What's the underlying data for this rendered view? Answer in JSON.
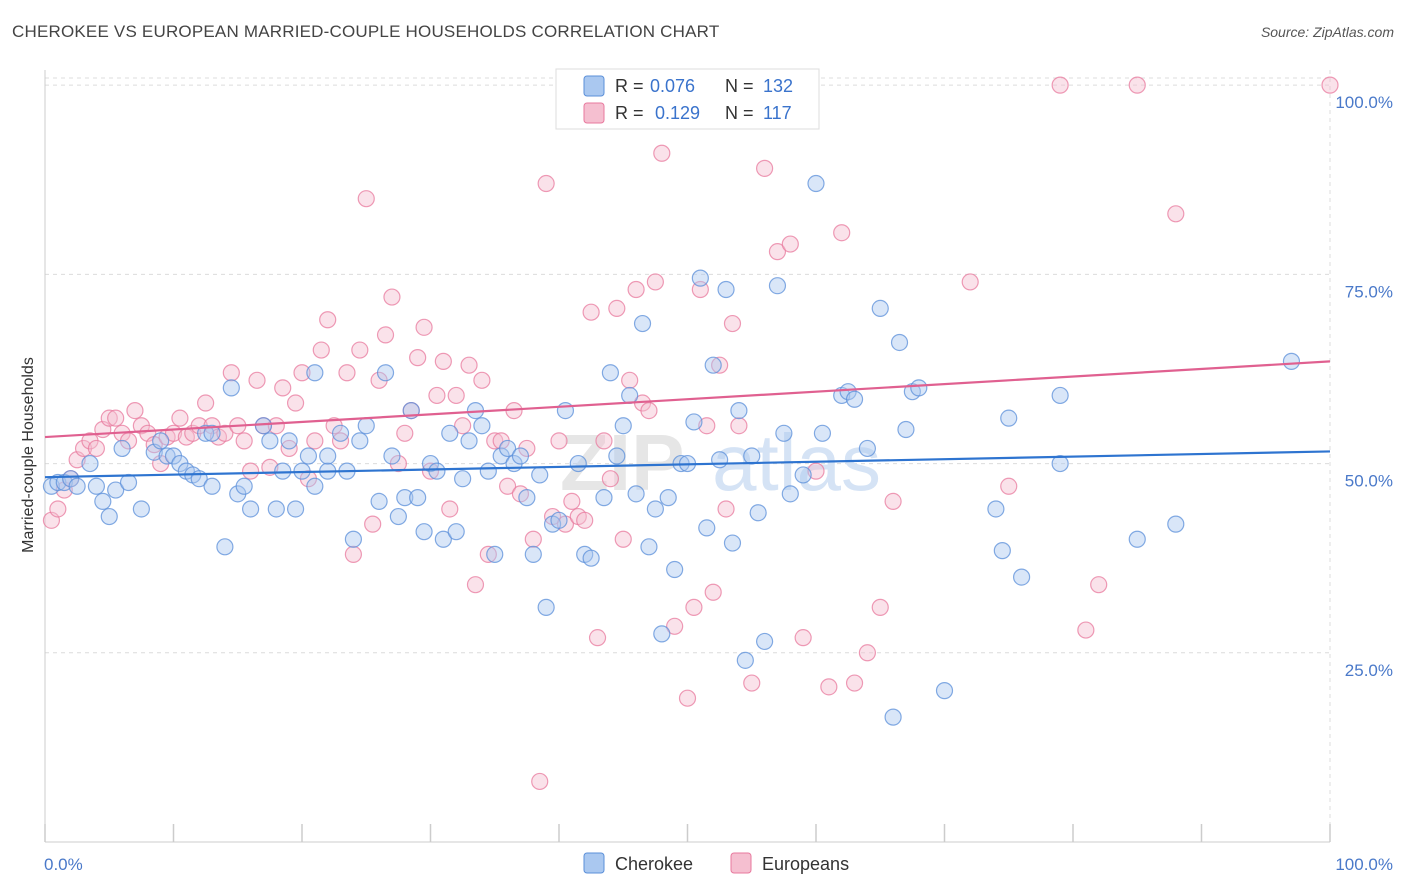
{
  "header": {
    "title": "CHEROKEE VS EUROPEAN MARRIED-COUPLE HOUSEHOLDS CORRELATION CHART",
    "source": "Source: ZipAtlas.com"
  },
  "watermark": "ZIPatlas",
  "colors": {
    "cherokee": "#5b8fd9",
    "cherokee_fill": "#aac8f0",
    "european": "#e8799e",
    "european_fill": "#f5bfd0",
    "cherokee_line": "#2e74d0",
    "european_line": "#e06090",
    "axis_text": "#4a79c9"
  },
  "legend_top": {
    "rows": [
      {
        "series": "Cherokee",
        "r_label": "R =",
        "r_value": "0.076",
        "n_label": "N =",
        "n_value": "132"
      },
      {
        "series": "Europeans",
        "r_label": "R =",
        "r_value": "0.129",
        "n_label": "N =",
        "n_value": "117"
      }
    ]
  },
  "chart_data": {
    "type": "scatter",
    "title": "CHEROKEE VS EUROPEAN MARRIED-COUPLE HOUSEHOLDS CORRELATION CHART",
    "xlabel": "",
    "ylabel": "Married-couple Households",
    "xlim": [
      0,
      100
    ],
    "ylim": [
      0,
      102
    ],
    "x_tick_labels": [
      "0.0%",
      "100.0%"
    ],
    "y_tick_labels": [
      "25.0%",
      "50.0%",
      "75.0%",
      "100.0%"
    ],
    "y_ticks": [
      25,
      50,
      75,
      100
    ],
    "grid": true,
    "legend_position": "bottom-center",
    "series": [
      {
        "name": "Cherokee",
        "R": 0.076,
        "N": 132,
        "trend": {
          "start": [
            0,
            48.2
          ],
          "end": [
            100,
            51.6
          ]
        },
        "points": [
          [
            0.5,
            47
          ],
          [
            1,
            47.5
          ],
          [
            1.5,
            47.5
          ],
          [
            2,
            48
          ],
          [
            2.5,
            47
          ],
          [
            3.5,
            50
          ],
          [
            4,
            47
          ],
          [
            4.5,
            45
          ],
          [
            5,
            43
          ],
          [
            5.5,
            46.5
          ],
          [
            6,
            52
          ],
          [
            6.5,
            47.5
          ],
          [
            7.5,
            44
          ],
          [
            8.5,
            51.5
          ],
          [
            9,
            53
          ],
          [
            9.5,
            51
          ],
          [
            10,
            51
          ],
          [
            10.5,
            50
          ],
          [
            11,
            49
          ],
          [
            11.5,
            48.5
          ],
          [
            12,
            48
          ],
          [
            12.5,
            54
          ],
          [
            13,
            54
          ],
          [
            13,
            47
          ],
          [
            14,
            39
          ],
          [
            14.5,
            60
          ],
          [
            15,
            46
          ],
          [
            15.5,
            47
          ],
          [
            16,
            44
          ],
          [
            17,
            55
          ],
          [
            17.5,
            53
          ],
          [
            18,
            44
          ],
          [
            18.5,
            49
          ],
          [
            19,
            53
          ],
          [
            19.5,
            44
          ],
          [
            20,
            49
          ],
          [
            20.5,
            51
          ],
          [
            21,
            62
          ],
          [
            21,
            47
          ],
          [
            22,
            49
          ],
          [
            22,
            51
          ],
          [
            23,
            54
          ],
          [
            23.5,
            49
          ],
          [
            24,
            40
          ],
          [
            24.5,
            53
          ],
          [
            25,
            55
          ],
          [
            26,
            45
          ],
          [
            26.5,
            62
          ],
          [
            27,
            51
          ],
          [
            27.5,
            43
          ],
          [
            28,
            45.5
          ],
          [
            28.5,
            57
          ],
          [
            29,
            45.5
          ],
          [
            29.5,
            41
          ],
          [
            30,
            50
          ],
          [
            30.5,
            49
          ],
          [
            31,
            40
          ],
          [
            31.5,
            54
          ],
          [
            32,
            41
          ],
          [
            32.5,
            48
          ],
          [
            33,
            53
          ],
          [
            33.5,
            57
          ],
          [
            34,
            55
          ],
          [
            34.5,
            49
          ],
          [
            35,
            38
          ],
          [
            35.5,
            51
          ],
          [
            36,
            52
          ],
          [
            36.5,
            50
          ],
          [
            37,
            51
          ],
          [
            37.5,
            45.5
          ],
          [
            38,
            38
          ],
          [
            38.5,
            48.5
          ],
          [
            39,
            31
          ],
          [
            39.5,
            42
          ],
          [
            40,
            42.5
          ],
          [
            40.5,
            57
          ],
          [
            41.5,
            50
          ],
          [
            42,
            38
          ],
          [
            42.5,
            37.5
          ],
          [
            43.5,
            45.5
          ],
          [
            44,
            62
          ],
          [
            44.5,
            51
          ],
          [
            45,
            55
          ],
          [
            45.5,
            59
          ],
          [
            46,
            46
          ],
          [
            46.5,
            68.5
          ],
          [
            47,
            39
          ],
          [
            47.5,
            44
          ],
          [
            48,
            27.5
          ],
          [
            48.5,
            45.5
          ],
          [
            49,
            36
          ],
          [
            49.5,
            50
          ],
          [
            50,
            50
          ],
          [
            50.5,
            55.5
          ],
          [
            51,
            74.5
          ],
          [
            51.5,
            41.5
          ],
          [
            52,
            63
          ],
          [
            52.5,
            50.5
          ],
          [
            53,
            73
          ],
          [
            53.5,
            39.5
          ],
          [
            54,
            57
          ],
          [
            54.5,
            24
          ],
          [
            55,
            51
          ],
          [
            55.5,
            43.5
          ],
          [
            56,
            26.5
          ],
          [
            57,
            73.5
          ],
          [
            57.5,
            54
          ],
          [
            58,
            46
          ],
          [
            59,
            48.5
          ],
          [
            60,
            87
          ],
          [
            60.5,
            54
          ],
          [
            62,
            59
          ],
          [
            62.5,
            59.5
          ],
          [
            63,
            58.5
          ],
          [
            64,
            52
          ],
          [
            65,
            70.5
          ],
          [
            66,
            16.5
          ],
          [
            66.5,
            66
          ],
          [
            67,
            54.5
          ],
          [
            67.5,
            59.5
          ],
          [
            68,
            60
          ],
          [
            70,
            20
          ],
          [
            74,
            44
          ],
          [
            74.5,
            38.5
          ],
          [
            75,
            56
          ],
          [
            76,
            35
          ],
          [
            79,
            59
          ],
          [
            79,
            50
          ],
          [
            85,
            40
          ],
          [
            88,
            42
          ],
          [
            97,
            63.5
          ]
        ]
      },
      {
        "name": "Europeans",
        "R": 0.129,
        "N": 117,
        "trend": {
          "start": [
            0,
            53.5
          ],
          "end": [
            100,
            63.5
          ]
        },
        "points": [
          [
            0.5,
            42.5
          ],
          [
            1,
            44
          ],
          [
            1.5,
            46.5
          ],
          [
            2,
            48
          ],
          [
            2.5,
            50.5
          ],
          [
            3,
            52
          ],
          [
            3.5,
            53
          ],
          [
            4,
            52
          ],
          [
            4.5,
            54.5
          ],
          [
            5,
            56
          ],
          [
            5.5,
            56
          ],
          [
            6,
            54
          ],
          [
            6.5,
            53
          ],
          [
            7,
            57
          ],
          [
            7.5,
            55
          ],
          [
            8,
            54
          ],
          [
            8.5,
            52.5
          ],
          [
            9,
            50
          ],
          [
            9.5,
            53.5
          ],
          [
            10,
            54
          ],
          [
            10.5,
            56
          ],
          [
            11,
            53.5
          ],
          [
            11.5,
            54
          ],
          [
            12,
            55
          ],
          [
            12.5,
            58
          ],
          [
            13,
            55
          ],
          [
            13.5,
            53.5
          ],
          [
            14,
            54
          ],
          [
            14.5,
            62
          ],
          [
            15,
            55
          ],
          [
            15.5,
            53
          ],
          [
            16,
            49
          ],
          [
            16.5,
            61
          ],
          [
            17,
            55
          ],
          [
            17.5,
            49.5
          ],
          [
            18,
            55
          ],
          [
            18.5,
            60
          ],
          [
            19,
            52
          ],
          [
            19.5,
            58
          ],
          [
            20,
            62
          ],
          [
            20.5,
            48
          ],
          [
            21,
            53
          ],
          [
            21.5,
            65
          ],
          [
            22,
            69
          ],
          [
            22.5,
            55
          ],
          [
            23,
            53
          ],
          [
            23.5,
            62
          ],
          [
            24,
            38
          ],
          [
            24.5,
            65
          ],
          [
            25,
            85
          ],
          [
            25.5,
            42
          ],
          [
            26,
            61
          ],
          [
            26.5,
            67
          ],
          [
            27,
            72
          ],
          [
            27.5,
            50
          ],
          [
            28,
            54
          ],
          [
            28.5,
            57
          ],
          [
            29,
            64
          ],
          [
            29.5,
            68
          ],
          [
            30,
            49
          ],
          [
            30.5,
            59
          ],
          [
            31,
            63.5
          ],
          [
            31.5,
            44
          ],
          [
            32,
            59
          ],
          [
            32.5,
            55
          ],
          [
            33,
            63
          ],
          [
            33.5,
            34
          ],
          [
            34,
            61
          ],
          [
            34.5,
            38
          ],
          [
            35,
            53
          ],
          [
            35.5,
            53
          ],
          [
            36,
            47
          ],
          [
            36.5,
            57
          ],
          [
            37,
            46
          ],
          [
            37.5,
            52
          ],
          [
            38,
            40
          ],
          [
            38.5,
            8
          ],
          [
            39,
            87
          ],
          [
            39.5,
            43
          ],
          [
            40,
            53
          ],
          [
            40.5,
            42
          ],
          [
            41,
            45
          ],
          [
            41.5,
            43
          ],
          [
            42,
            42.5
          ],
          [
            42.5,
            70
          ],
          [
            43,
            27
          ],
          [
            43.5,
            53
          ],
          [
            44,
            48
          ],
          [
            44.5,
            70.5
          ],
          [
            45,
            40
          ],
          [
            45.5,
            61
          ],
          [
            46,
            73
          ],
          [
            46.5,
            58
          ],
          [
            47,
            57
          ],
          [
            47.5,
            74
          ],
          [
            48,
            91
          ],
          [
            49,
            28.5
          ],
          [
            50,
            19
          ],
          [
            50.5,
            31
          ],
          [
            51,
            73
          ],
          [
            51.5,
            55
          ],
          [
            52,
            33
          ],
          [
            52.5,
            63
          ],
          [
            53,
            44
          ],
          [
            53.5,
            68.5
          ],
          [
            54,
            55
          ],
          [
            55,
            21
          ],
          [
            56,
            89
          ],
          [
            57,
            78
          ],
          [
            58,
            79
          ],
          [
            59,
            27
          ],
          [
            60,
            49
          ],
          [
            61,
            20.5
          ],
          [
            62,
            80.5
          ],
          [
            63,
            21
          ],
          [
            64,
            25
          ],
          [
            65,
            31
          ],
          [
            66,
            45
          ],
          [
            72,
            74
          ],
          [
            75,
            47
          ],
          [
            79,
            100
          ],
          [
            81,
            28
          ],
          [
            82,
            34
          ],
          [
            85,
            100
          ],
          [
            88,
            83
          ],
          [
            100,
            100
          ]
        ]
      }
    ]
  },
  "bottom_legend": {
    "items": [
      "Cherokee",
      "Europeans"
    ]
  }
}
